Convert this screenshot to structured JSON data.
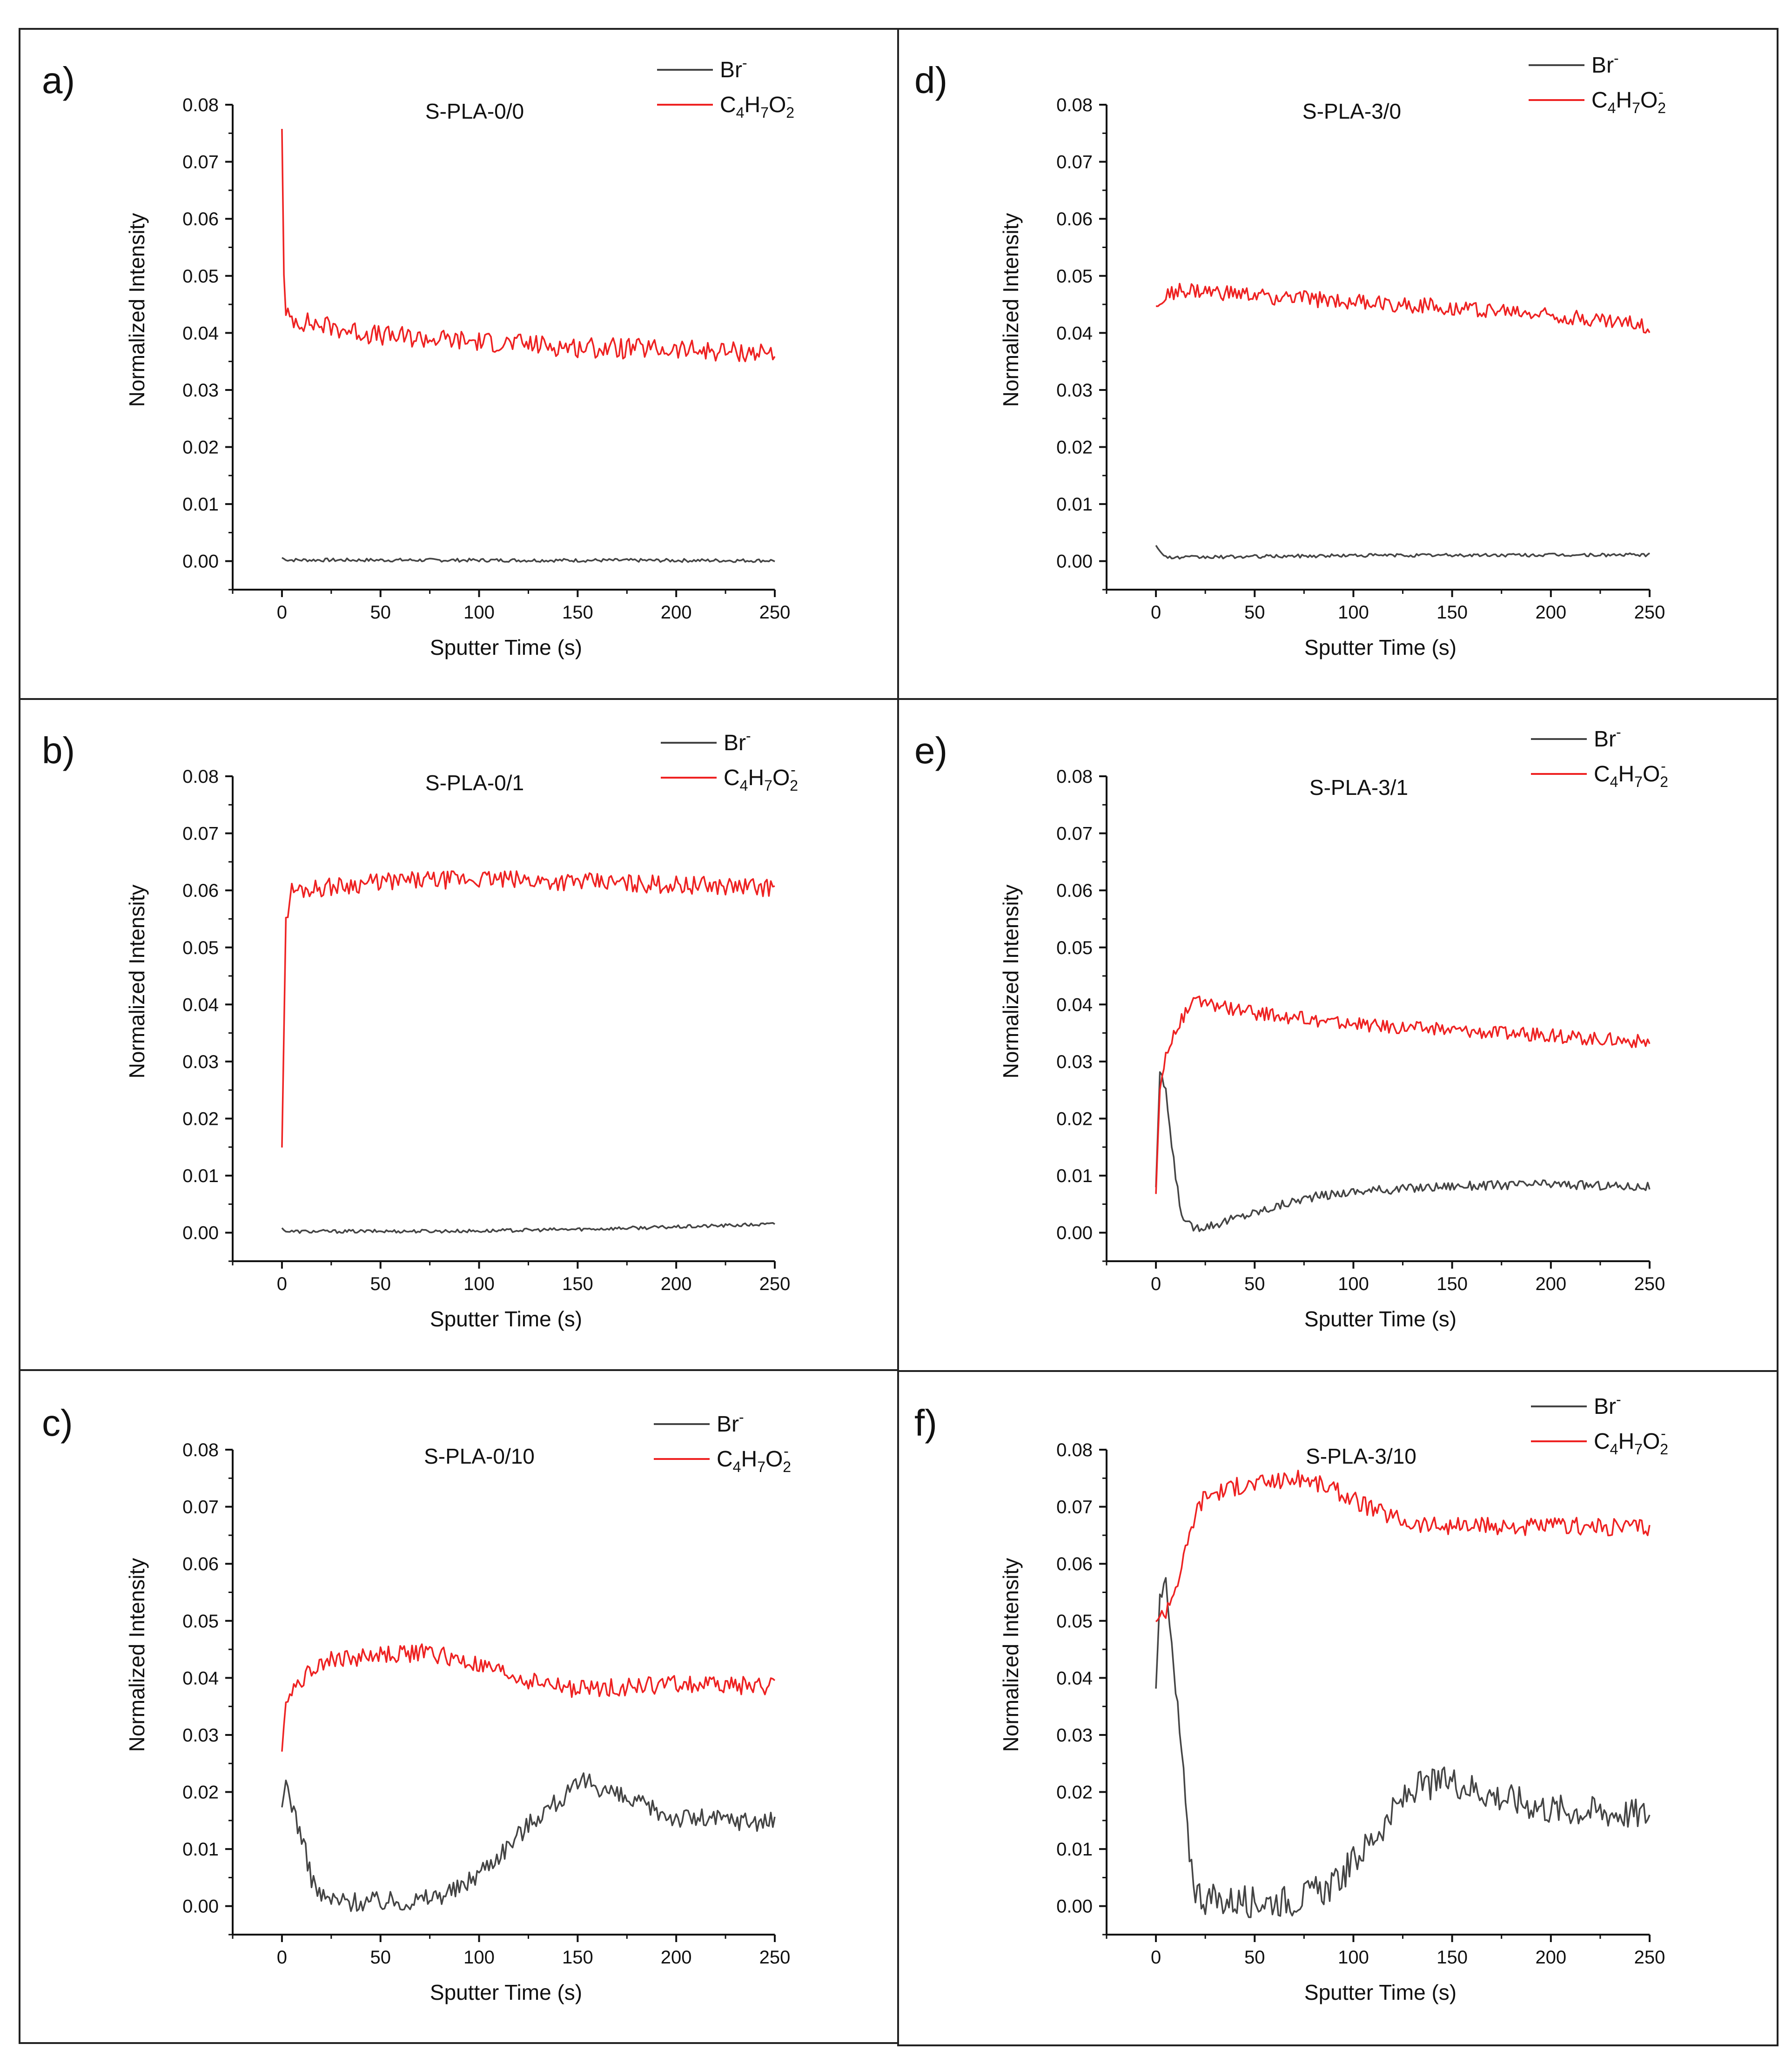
{
  "colors": {
    "br": "#444444",
    "c4": "#ee2222",
    "frame": "#222222"
  },
  "chart_data": [
    {
      "panel_label": "a)",
      "title": "S-PLA-0/0",
      "type": "line",
      "xlabel": "Sputter Time (s)",
      "ylabel": "Normalized Intensity",
      "xlim": [
        -25,
        250
      ],
      "ylim": [
        -0.005,
        0.08
      ],
      "xticks": [
        "0",
        "50",
        "100",
        "150",
        "200",
        "250"
      ],
      "yticks": [
        "0.00",
        "0.01",
        "0.02",
        "0.03",
        "0.04",
        "0.05",
        "0.06",
        "0.07",
        "0.08"
      ],
      "legend": [
        "Br",
        "C4H7O2"
      ],
      "legend_position": "top-right",
      "series": [
        {
          "name": "Br",
          "color": "#444444",
          "noise": 0.0003,
          "x": [
            0,
            2,
            250
          ],
          "values": [
            0.0006,
            0.0002,
            0.0001
          ]
        },
        {
          "name": "C4H7O2",
          "color": "#ee2222",
          "noise": 0.0018,
          "x": [
            0,
            1,
            2,
            10,
            50,
            100,
            150,
            200,
            250
          ],
          "values": [
            0.076,
            0.05,
            0.043,
            0.042,
            0.0395,
            0.0385,
            0.0375,
            0.037,
            0.0365
          ]
        }
      ]
    },
    {
      "panel_label": "b)",
      "title": "S-PLA-0/1",
      "type": "line",
      "xlabel": "Sputter Time (s)",
      "ylabel": "Normalized Intensity",
      "xlim": [
        -25,
        250
      ],
      "ylim": [
        -0.005,
        0.08
      ],
      "xticks": [
        "0",
        "50",
        "100",
        "150",
        "200",
        "250"
      ],
      "yticks": [
        "0.00",
        "0.01",
        "0.02",
        "0.03",
        "0.04",
        "0.05",
        "0.06",
        "0.07",
        "0.08"
      ],
      "legend": [
        "Br",
        "C4H7O2"
      ],
      "legend_position": "top-right",
      "series": [
        {
          "name": "Br",
          "color": "#444444",
          "noise": 0.0003,
          "x": [
            0,
            2,
            100,
            150,
            200,
            250
          ],
          "values": [
            0.0008,
            0.0002,
            0.0003,
            0.0006,
            0.001,
            0.0015
          ]
        },
        {
          "name": "C4H7O2",
          "color": "#ee2222",
          "noise": 0.0016,
          "x": [
            0,
            2,
            5,
            20,
            50,
            100,
            150,
            200,
            250
          ],
          "values": [
            0.015,
            0.055,
            0.06,
            0.0605,
            0.0615,
            0.062,
            0.0615,
            0.061,
            0.0605
          ]
        }
      ]
    },
    {
      "panel_label": "c)",
      "title": "S-PLA-0/10",
      "type": "line",
      "xlabel": "Sputter Time (s)",
      "ylabel": "Normalized Intensity",
      "xlim": [
        -25,
        250
      ],
      "ylim": [
        -0.005,
        0.08
      ],
      "xticks": [
        "0",
        "50",
        "100",
        "150",
        "200",
        "250"
      ],
      "yticks": [
        "0.00",
        "0.01",
        "0.02",
        "0.03",
        "0.04",
        "0.05",
        "0.06",
        "0.07",
        "0.08"
      ],
      "legend": [
        "Br",
        "C4H7O2"
      ],
      "legend_position": "top-right",
      "series": [
        {
          "name": "Br",
          "color": "#444444",
          "noise": 0.0018,
          "x": [
            0,
            2,
            5,
            10,
            15,
            20,
            30,
            50,
            70,
            90,
            110,
            130,
            155,
            175,
            200,
            250
          ],
          "values": [
            0.017,
            0.022,
            0.018,
            0.012,
            0.005,
            0.0015,
            0.0008,
            0.0008,
            0.001,
            0.003,
            0.009,
            0.016,
            0.022,
            0.0185,
            0.0155,
            0.0148
          ]
        },
        {
          "name": "C4H7O2",
          "color": "#ee2222",
          "noise": 0.0016,
          "x": [
            0,
            2,
            5,
            20,
            50,
            75,
            100,
            125,
            150,
            175,
            200,
            250
          ],
          "values": [
            0.027,
            0.036,
            0.038,
            0.043,
            0.044,
            0.0445,
            0.042,
            0.0395,
            0.038,
            0.0385,
            0.039,
            0.0385
          ]
        }
      ]
    },
    {
      "panel_label": "d)",
      "title": "S-PLA-3/0",
      "type": "line",
      "xlabel": "Sputter Time (s)",
      "ylabel": "Normalized Intensity",
      "xlim": [
        -25,
        250
      ],
      "ylim": [
        -0.005,
        0.08
      ],
      "xticks": [
        "0",
        "50",
        "100",
        "150",
        "200",
        "250"
      ],
      "yticks": [
        "0.00",
        "0.01",
        "0.02",
        "0.03",
        "0.04",
        "0.05",
        "0.06",
        "0.07",
        "0.08"
      ],
      "legend": [
        "Br",
        "C4H7O2"
      ],
      "legend_position": "top-right",
      "series": [
        {
          "name": "Br",
          "color": "#444444",
          "noise": 0.0003,
          "x": [
            0,
            3,
            8,
            50,
            100,
            250
          ],
          "values": [
            0.0028,
            0.0012,
            0.0006,
            0.0008,
            0.001,
            0.0011
          ]
        },
        {
          "name": "C4H7O2",
          "color": "#ee2222",
          "noise": 0.0014,
          "x": [
            0,
            5,
            10,
            50,
            100,
            150,
            200,
            250
          ],
          "values": [
            0.0445,
            0.046,
            0.0475,
            0.0465,
            0.0455,
            0.0445,
            0.0432,
            0.0412
          ]
        }
      ]
    },
    {
      "panel_label": "e)",
      "title": "S-PLA-3/1",
      "type": "line",
      "xlabel": "Sputter Time (s)",
      "ylabel": "Normalized Intensity",
      "xlim": [
        -25,
        250
      ],
      "ylim": [
        -0.005,
        0.08
      ],
      "xticks": [
        "0",
        "50",
        "100",
        "150",
        "200",
        "250"
      ],
      "yticks": [
        "0.00",
        "0.01",
        "0.02",
        "0.03",
        "0.04",
        "0.05",
        "0.06",
        "0.07",
        "0.08"
      ],
      "legend": [
        "Br",
        "C4H7O2"
      ],
      "legend_position": "top-right",
      "series": [
        {
          "name": "Br",
          "color": "#444444",
          "noise": 0.0008,
          "x": [
            0,
            2,
            5,
            8,
            12,
            15,
            20,
            30,
            50,
            75,
            100,
            150,
            200,
            250
          ],
          "values": [
            0.008,
            0.028,
            0.025,
            0.015,
            0.005,
            0.0015,
            0.0009,
            0.0015,
            0.0035,
            0.006,
            0.0072,
            0.0082,
            0.0085,
            0.008
          ]
        },
        {
          "name": "C4H7O2",
          "color": "#ee2222",
          "noise": 0.0012,
          "x": [
            0,
            2,
            5,
            10,
            20,
            50,
            100,
            150,
            200,
            250
          ],
          "values": [
            0.007,
            0.025,
            0.031,
            0.036,
            0.0405,
            0.0385,
            0.0365,
            0.0355,
            0.0345,
            0.0335
          ]
        }
      ]
    },
    {
      "panel_label": "f)",
      "title": "S-PLA-3/10",
      "type": "line",
      "xlabel": "Sputter Time (s)",
      "ylabel": "Normalized Intensity",
      "xlim": [
        -25,
        250
      ],
      "ylim": [
        -0.005,
        0.08
      ],
      "xticks": [
        "0",
        "50",
        "100",
        "150",
        "200",
        "250"
      ],
      "yticks": [
        "0.00",
        "0.01",
        "0.02",
        "0.03",
        "0.04",
        "0.05",
        "0.06",
        "0.07",
        "0.08"
      ],
      "legend": [
        "Br",
        "C4H7O2"
      ],
      "legend_position": "top-right",
      "series": [
        {
          "name": "Br",
          "color": "#444444",
          "noise": 0.0028,
          "x": [
            0,
            2,
            4,
            6,
            8,
            10,
            13,
            16,
            20,
            25,
            30,
            50,
            70,
            90,
            110,
            130,
            150,
            170,
            200,
            250
          ],
          "values": [
            0.038,
            0.055,
            0.058,
            0.052,
            0.045,
            0.037,
            0.027,
            0.012,
            0.003,
            0.0012,
            0.001,
            0.0008,
            0.001,
            0.0035,
            0.012,
            0.0205,
            0.022,
            0.0195,
            0.017,
            0.016
          ]
        },
        {
          "name": "C4H7O2",
          "color": "#ee2222",
          "noise": 0.0016,
          "x": [
            0,
            3,
            5,
            10,
            15,
            20,
            25,
            40,
            60,
            75,
            90,
            110,
            130,
            150,
            200,
            250
          ],
          "values": [
            0.05,
            0.051,
            0.052,
            0.056,
            0.062,
            0.069,
            0.072,
            0.0735,
            0.0745,
            0.075,
            0.073,
            0.0695,
            0.067,
            0.0665,
            0.0665,
            0.0665
          ]
        }
      ]
    }
  ]
}
